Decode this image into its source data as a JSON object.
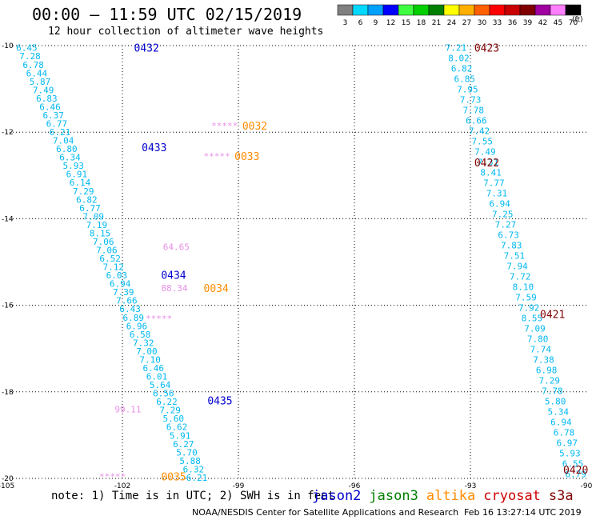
{
  "header": {
    "title": "00:00 – 11:59 UTC 02/15/2019",
    "subtitle": "12 hour collection of altimeter wave heights"
  },
  "colorbar": {
    "labels": [
      "3",
      "6",
      "9",
      "12",
      "15",
      "18",
      "21",
      "24",
      "27",
      "30",
      "33",
      "36",
      "39",
      "42",
      "45",
      "70"
    ],
    "unit": "(ft)",
    "colors": [
      "#808080",
      "#00d8ff",
      "#00a0ff",
      "#0000ff",
      "#40ff40",
      "#00d000",
      "#008000",
      "#ffff00",
      "#ffb000",
      "#ff6000",
      "#ff0000",
      "#c80000",
      "#800000",
      "#a000a0",
      "#ff80ff",
      "#000000"
    ]
  },
  "footer": {
    "note": "note: 1) Time is in UTC; 2) SWH is in feet",
    "credit": "NOAA/NESDIS Center for Satellite Applications and Research",
    "timestamp": "Feb 16 13:27:14 UTC 2019"
  },
  "legend": [
    {
      "label": "jason2",
      "color": "#0000cc"
    },
    {
      "label": "jason3",
      "color": "#008000"
    },
    {
      "label": "altika",
      "color": "#ff8c00"
    },
    {
      "label": "cryosat",
      "color": "#cc0000"
    },
    {
      "label": "s3a",
      "color": "#800000"
    }
  ],
  "chart_data": {
    "type": "scatter",
    "xlim": [
      -105,
      -90
    ],
    "ylim": [
      -20,
      -10
    ],
    "x_ticks": [
      "-105",
      "-102",
      "-99",
      "-96",
      "-93",
      "-90"
    ],
    "y_ticks": [
      "-10",
      "-12",
      "-14",
      "-16",
      "-18",
      "-20"
    ],
    "grid": true,
    "label_color": "#00b8f0",
    "track1_values": [
      "6.45",
      "7.28",
      "6.78",
      "6.44",
      "5.87",
      "7.49",
      "6.83",
      "6.46",
      "6.37",
      "6.77",
      "6.21",
      "7.04",
      "6.80",
      "6.34",
      "5.93",
      "6.91",
      "6.14",
      "7.29",
      "6.82",
      "6.77",
      "7.09",
      "7.19",
      "8.15",
      "7.06",
      "7.06",
      "6.52",
      "7.12",
      "6.03",
      "6.94",
      "7.39",
      "7.66",
      "6.43",
      "6.89",
      "6.96",
      "6.58",
      "7.32",
      "7.00",
      "7.10",
      "6.46",
      "6.01",
      "5.64",
      "6.56",
      "6.22",
      "7.29",
      "5.60",
      "6.62",
      "5.91",
      "6.27",
      "5.70",
      "5.88",
      "6.32",
      "6.21"
    ],
    "track2_values": [
      "7.21",
      "8.02",
      "6.82",
      "6.85",
      "7.95",
      "7.73",
      "7.78",
      "6.66",
      "7.42",
      "7.55",
      "7.49",
      "7.31",
      "8.41",
      "7.77",
      "7.31",
      "6.94",
      "7.25",
      "7.27",
      "6.73",
      "7.83",
      "7.51",
      "7.94",
      "7.72",
      "8.10",
      "7.59",
      "7.92",
      "8.55",
      "7.09",
      "7.80",
      "7.74",
      "7.38",
      "6.98",
      "7.29",
      "7.78",
      "5.80",
      "5.34",
      "6.94",
      "6.78",
      "6.97",
      "5.93",
      "6.55",
      "6.79"
    ],
    "time_labels": [
      {
        "text": "0432",
        "color": "#0000cc",
        "lon": -101.7,
        "lat": -10.05
      },
      {
        "text": "0433",
        "color": "#0000cc",
        "lon": -101.5,
        "lat": -12.35
      },
      {
        "text": "0434",
        "color": "#0000cc",
        "lon": -101.0,
        "lat": -15.3
      },
      {
        "text": "0435",
        "color": "#0000cc",
        "lon": -99.8,
        "lat": -18.2
      },
      {
        "text": "0032",
        "color": "#ff8c00",
        "lon": -98.9,
        "lat": -11.85
      },
      {
        "text": "0033",
        "color": "#ff8c00",
        "lon": -99.1,
        "lat": -12.55
      },
      {
        "text": "0034",
        "color": "#ff8c00",
        "lon": -99.9,
        "lat": -15.6
      },
      {
        "text": "0035",
        "color": "#ff8c00",
        "lon": -101.0,
        "lat": -19.95
      },
      {
        "text": "0423",
        "color": "#800000",
        "lon": -92.9,
        "lat": -10.05
      },
      {
        "text": "0422",
        "color": "#800000",
        "lon": -92.9,
        "lat": -12.7
      },
      {
        "text": "0421",
        "color": "#800000",
        "lon": -91.2,
        "lat": -16.2
      },
      {
        "text": "0420",
        "color": "#800000",
        "lon": -90.6,
        "lat": -19.8
      }
    ],
    "altika_values": [
      {
        "text": "*****",
        "lon": -99.7,
        "lat": -11.85
      },
      {
        "text": "*****",
        "lon": -99.9,
        "lat": -12.55
      },
      {
        "text": "64.65",
        "lon": -100.95,
        "lat": -14.65
      },
      {
        "text": "88.34",
        "lon": -101.0,
        "lat": -15.6
      },
      {
        "text": "*****",
        "lon": -101.4,
        "lat": -16.3
      },
      {
        "text": "99.11",
        "lon": -102.2,
        "lat": -18.4
      },
      {
        "text": "*****",
        "lon": -102.6,
        "lat": -19.95
      }
    ]
  }
}
